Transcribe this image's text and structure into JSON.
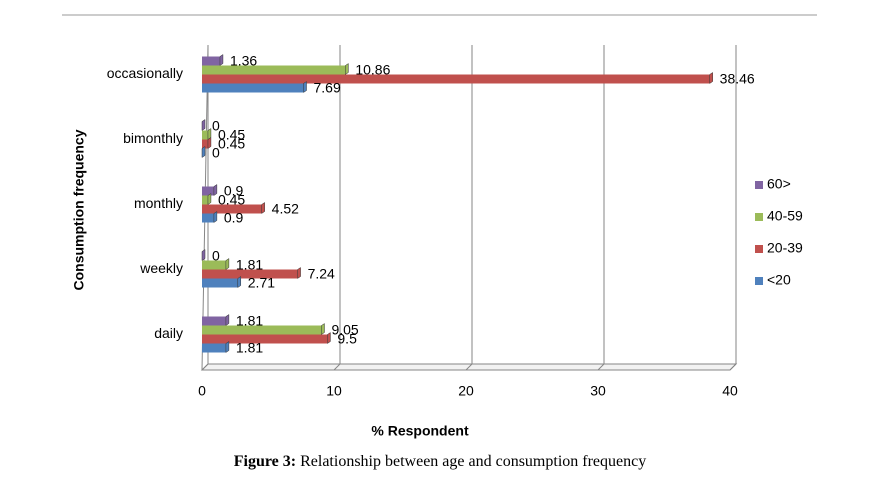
{
  "chart_data": {
    "type": "hbar",
    "xlabel": "% Respondent",
    "ylabel": "Consumption frequency",
    "categories": [
      "daily",
      "weekly",
      "monthly",
      "bimonthly",
      "occasionally"
    ],
    "series": [
      {
        "name": "60>",
        "color": "#8064a2",
        "values": [
          1.81,
          0,
          0.9,
          0,
          1.36
        ]
      },
      {
        "name": "40-59",
        "color": "#9bbb59",
        "values": [
          9.05,
          1.81,
          0.45,
          0.45,
          10.86
        ]
      },
      {
        "name": "20-39",
        "color": "#c0504d",
        "values": [
          9.5,
          7.24,
          4.52,
          0.45,
          38.46
        ]
      },
      {
        "name": "<20",
        "color": "#4f81bd",
        "values": [
          1.81,
          2.71,
          0.9,
          0,
          7.69
        ]
      }
    ],
    "xlim": [
      0,
      40
    ],
    "xticks": [
      0,
      10,
      20,
      30,
      40
    ],
    "grid": true,
    "legend": "right"
  },
  "figure_caption": {
    "label": "Figure  3:",
    "text": "Relationship between age and consumption frequency"
  }
}
